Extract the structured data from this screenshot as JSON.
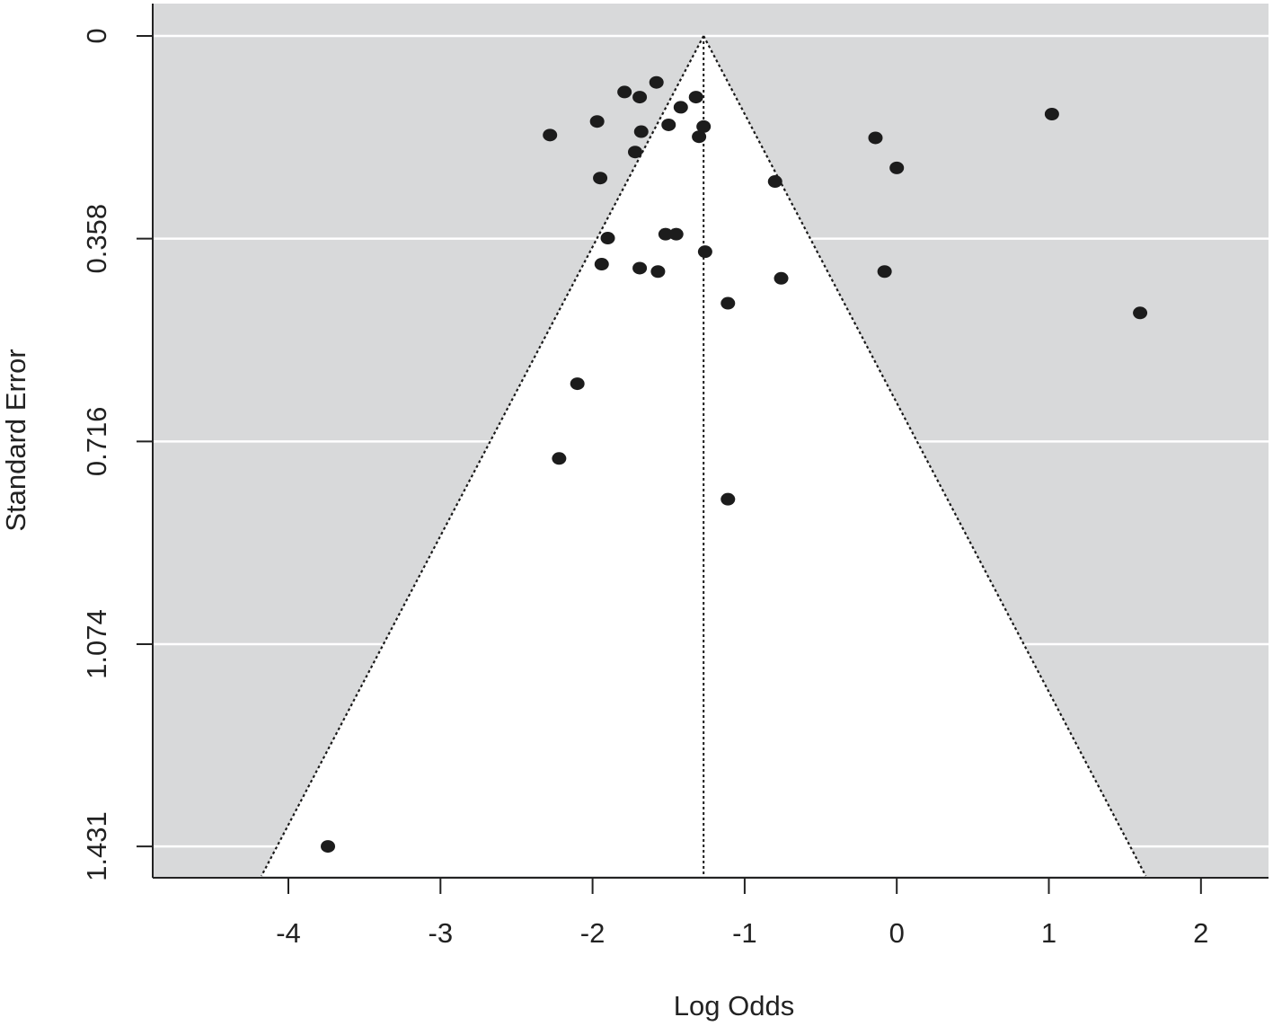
{
  "chart_data": {
    "type": "scatter",
    "subtype": "funnel-plot",
    "title": "",
    "xlabel": "Log Odds",
    "ylabel": "Standard Error",
    "xlim": [
      -4.9,
      2.45
    ],
    "ylim": [
      0,
      1.49
    ],
    "y_reversed": true,
    "x_ticks": [
      -4,
      -3,
      -2,
      -1,
      0,
      1,
      2
    ],
    "x_tick_labels": [
      "-4",
      "-3",
      "-2",
      "-1",
      "0",
      "1",
      "2"
    ],
    "y_ticks": [
      0,
      0.358,
      0.716,
      1.074,
      1.431
    ],
    "y_tick_labels": [
      "0",
      "0.358",
      "0.716",
      "1.074",
      "1.431"
    ],
    "grid": true,
    "summary_estimate": -1.27,
    "funnel_z": 1.96,
    "colors": {
      "panel_background": "#d8d9da",
      "funnel_fill": "#ffffff",
      "gridline": "#ffffff",
      "point": "#1c1c1c",
      "axis": "#222222"
    },
    "series": [
      {
        "points": [
          {
            "x": -1.58,
            "y": 0.082
          },
          {
            "x": -1.79,
            "y": 0.099
          },
          {
            "x": -1.69,
            "y": 0.108
          },
          {
            "x": -1.32,
            "y": 0.108
          },
          {
            "x": -1.42,
            "y": 0.126
          },
          {
            "x": 1.02,
            "y": 0.138
          },
          {
            "x": -1.97,
            "y": 0.151
          },
          {
            "x": -1.5,
            "y": 0.157
          },
          {
            "x": -1.27,
            "y": 0.16
          },
          {
            "x": -1.68,
            "y": 0.169
          },
          {
            "x": -2.28,
            "y": 0.175
          },
          {
            "x": -1.3,
            "y": 0.178
          },
          {
            "x": -0.14,
            "y": 0.18
          },
          {
            "x": -1.72,
            "y": 0.205
          },
          {
            "x": 0.0,
            "y": 0.233
          },
          {
            "x": -1.95,
            "y": 0.251
          },
          {
            "x": -0.8,
            "y": 0.257
          },
          {
            "x": -1.52,
            "y": 0.35
          },
          {
            "x": -1.45,
            "y": 0.35
          },
          {
            "x": -1.9,
            "y": 0.357
          },
          {
            "x": -1.26,
            "y": 0.381
          },
          {
            "x": -1.94,
            "y": 0.403
          },
          {
            "x": -1.69,
            "y": 0.41
          },
          {
            "x": -1.57,
            "y": 0.416
          },
          {
            "x": -0.08,
            "y": 0.416
          },
          {
            "x": -0.76,
            "y": 0.428
          },
          {
            "x": -1.11,
            "y": 0.472
          },
          {
            "x": 1.6,
            "y": 0.489
          },
          {
            "x": -2.1,
            "y": 0.614
          },
          {
            "x": -2.22,
            "y": 0.746
          },
          {
            "x": -1.11,
            "y": 0.818
          },
          {
            "x": -3.74,
            "y": 1.431
          }
        ]
      }
    ]
  }
}
